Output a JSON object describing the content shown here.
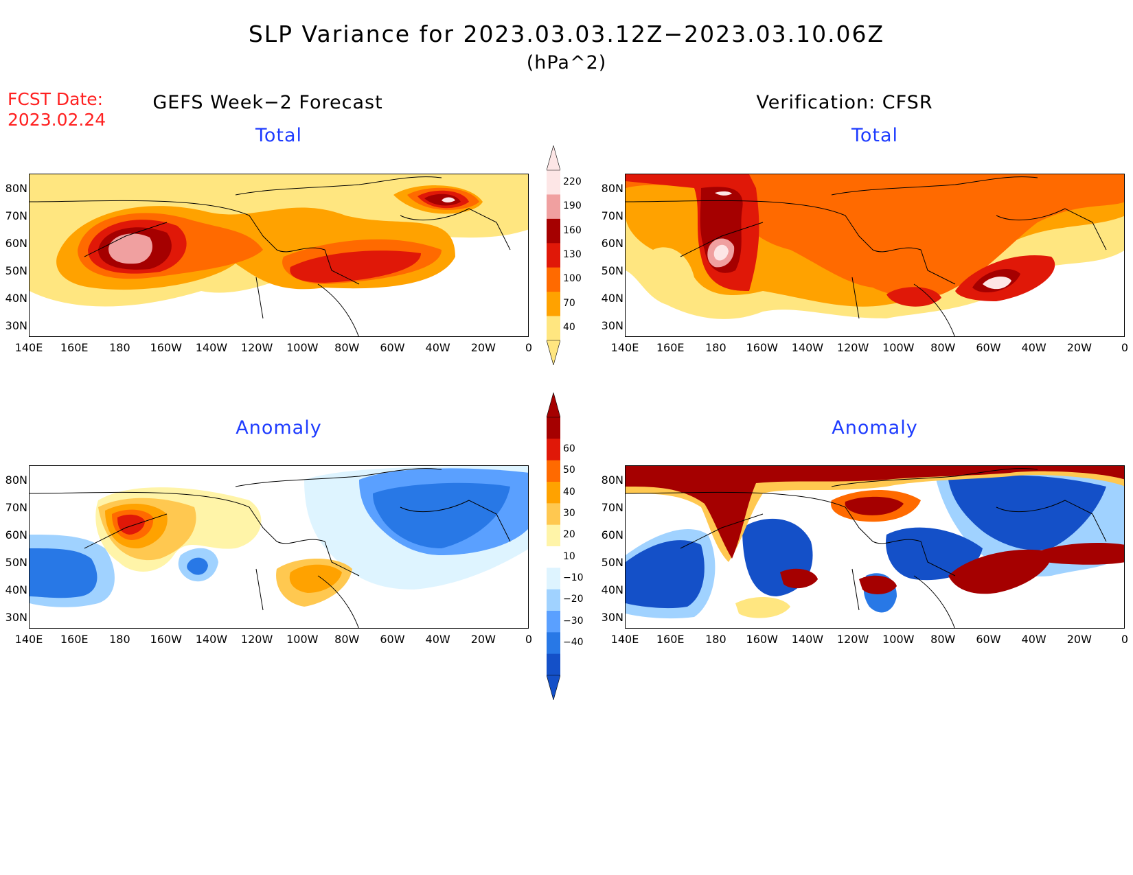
{
  "header": {
    "title": "SLP Variance for 2023.03.03.12Z−2023.03.10.06Z",
    "units": "(hPa^2)",
    "fcst_label": "FCST Date:",
    "fcst_date": "2023.02.24"
  },
  "columns": {
    "left": "GEFS Week−2 Forecast",
    "right": "Verification: CFSR"
  },
  "rows": {
    "top": "Total",
    "bottom": "Anomaly"
  },
  "axes": {
    "lat_ticks": [
      "80N",
      "70N",
      "60N",
      "50N",
      "40N",
      "30N"
    ],
    "lon_ticks": [
      "140E",
      "160E",
      "180",
      "160W",
      "140W",
      "120W",
      "100W",
      "80W",
      "60W",
      "40W",
      "20W",
      "0"
    ]
  },
  "colorbars": {
    "total": {
      "labels": [
        "220",
        "190",
        "160",
        "130",
        "100",
        "70",
        "40"
      ],
      "colors": [
        "#fde6e6",
        "#f0a0a0",
        "#a50000",
        "#e01808",
        "#ff6a00",
        "#ffa200",
        "#ffe680"
      ]
    },
    "anomaly": {
      "labels": [
        "60",
        "50",
        "40",
        "30",
        "20",
        "10",
        "−10",
        "−20",
        "−30",
        "−40"
      ],
      "colors": [
        "#a50000",
        "#e01808",
        "#ff6a00",
        "#ffa200",
        "#ffc850",
        "#fff4a8",
        "#ffffff",
        "#def4ff",
        "#a0d2ff",
        "#5aa0ff",
        "#2878e6",
        "#1450c8"
      ]
    }
  },
  "palette": {
    "total": [
      "#ffe680",
      "#ffa200",
      "#ff6a00",
      "#e01808",
      "#a50000",
      "#f0a0a0",
      "#fde6e6"
    ],
    "anomaly_pos": [
      "#fff4a8",
      "#ffc850",
      "#ffa200",
      "#ff6a00",
      "#e01808",
      "#a50000"
    ],
    "anomaly_neg": [
      "#def4ff",
      "#a0d2ff",
      "#5aa0ff",
      "#2878e6",
      "#1450c8"
    ]
  }
}
